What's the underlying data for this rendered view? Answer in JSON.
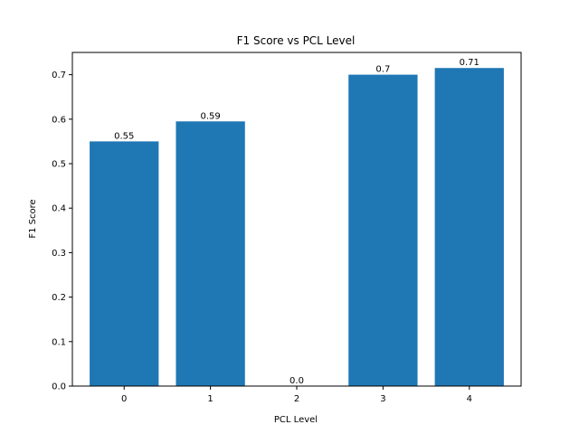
{
  "chart_data": {
    "type": "bar",
    "title": "F1 Score vs PCL Level",
    "xlabel": "PCL Level",
    "ylabel": "F1 Score",
    "categories": [
      "0",
      "1",
      "2",
      "3",
      "4"
    ],
    "values": [
      0.55,
      0.595,
      0.0,
      0.7,
      0.715
    ],
    "data_labels": [
      "0.55",
      "0.59",
      "0.0",
      "0.7",
      "0.71"
    ],
    "ylim": [
      0,
      0.75
    ],
    "yticks": [
      0.0,
      0.1,
      0.2,
      0.3,
      0.4,
      0.5,
      0.6,
      0.7
    ],
    "ytick_labels": [
      "0.0",
      "0.1",
      "0.2",
      "0.3",
      "0.4",
      "0.5",
      "0.6",
      "0.7"
    ],
    "bar_color": "#1f77b4",
    "grid": false,
    "legend": "none"
  }
}
